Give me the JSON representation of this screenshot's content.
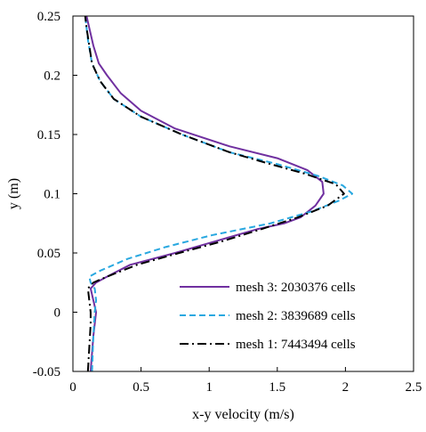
{
  "chart_data": {
    "type": "line",
    "title": "",
    "xlabel": "x-y velocity (m/s)",
    "ylabel": "y (m)",
    "xlim": [
      0,
      2.5
    ],
    "ylim": [
      -0.05,
      0.25
    ],
    "xticks": [
      0,
      0.5,
      1,
      1.5,
      2,
      2.5
    ],
    "xtick_labels": [
      "0",
      "0.5",
      "1",
      "1.5",
      "2",
      "2.5"
    ],
    "yticks": [
      -0.05,
      0,
      0.05,
      0.1,
      0.15,
      0.2,
      0.25
    ],
    "ytick_labels": [
      "-0.05",
      "0",
      "0.05",
      "0.1",
      "0.15",
      "0.2",
      "0.25"
    ],
    "grid": false,
    "legend_position": "bottom-right",
    "series": [
      {
        "name": "mesh 3: 2030376 cells",
        "color": "#7030A0",
        "dash": "solid",
        "points": [
          [
            0.13,
            -0.05
          ],
          [
            0.15,
            -0.02
          ],
          [
            0.17,
            0.0
          ],
          [
            0.14,
            0.015
          ],
          [
            0.13,
            0.02
          ],
          [
            0.17,
            0.025
          ],
          [
            0.25,
            0.03
          ],
          [
            0.42,
            0.04
          ],
          [
            0.75,
            0.05
          ],
          [
            1.05,
            0.06
          ],
          [
            1.35,
            0.07
          ],
          [
            1.55,
            0.075
          ],
          [
            1.67,
            0.08
          ],
          [
            1.78,
            0.09
          ],
          [
            1.84,
            0.1
          ],
          [
            1.83,
            0.11
          ],
          [
            1.72,
            0.12
          ],
          [
            1.5,
            0.13
          ],
          [
            1.15,
            0.14
          ],
          [
            0.75,
            0.155
          ],
          [
            0.5,
            0.17
          ],
          [
            0.35,
            0.185
          ],
          [
            0.25,
            0.2
          ],
          [
            0.19,
            0.21
          ],
          [
            0.15,
            0.225
          ],
          [
            0.12,
            0.24
          ],
          [
            0.1,
            0.25
          ]
        ]
      },
      {
        "name": "mesh 2: 3839689 cells",
        "color": "#29A8E0",
        "dash": "dashed",
        "points": [
          [
            0.14,
            -0.05
          ],
          [
            0.15,
            -0.02
          ],
          [
            0.16,
            0.0
          ],
          [
            0.17,
            0.01
          ],
          [
            0.16,
            0.02
          ],
          [
            0.13,
            0.025
          ],
          [
            0.12,
            0.03
          ],
          [
            0.2,
            0.035
          ],
          [
            0.4,
            0.045
          ],
          [
            0.68,
            0.055
          ],
          [
            1.02,
            0.065
          ],
          [
            1.45,
            0.075
          ],
          [
            1.75,
            0.085
          ],
          [
            1.95,
            0.094
          ],
          [
            2.05,
            0.1
          ],
          [
            1.98,
            0.107
          ],
          [
            1.8,
            0.115
          ],
          [
            1.5,
            0.125
          ],
          [
            1.15,
            0.135
          ],
          [
            0.8,
            0.15
          ],
          [
            0.5,
            0.165
          ],
          [
            0.3,
            0.18
          ],
          [
            0.2,
            0.195
          ],
          [
            0.14,
            0.21
          ],
          [
            0.11,
            0.23
          ],
          [
            0.09,
            0.25
          ]
        ]
      },
      {
        "name": "mesh 1: 7443494 cells",
        "color": "#000000",
        "dash": "dashdot",
        "points": [
          [
            0.11,
            -0.05
          ],
          [
            0.12,
            -0.03
          ],
          [
            0.13,
            -0.01
          ],
          [
            0.13,
            0.0
          ],
          [
            0.12,
            0.01
          ],
          [
            0.11,
            0.02
          ],
          [
            0.15,
            0.025
          ],
          [
            0.25,
            0.03
          ],
          [
            0.47,
            0.04
          ],
          [
            0.78,
            0.05
          ],
          [
            1.1,
            0.06
          ],
          [
            1.38,
            0.07
          ],
          [
            1.65,
            0.08
          ],
          [
            1.87,
            0.09
          ],
          [
            1.99,
            0.1
          ],
          [
            1.93,
            0.108
          ],
          [
            1.7,
            0.117
          ],
          [
            1.45,
            0.125
          ],
          [
            1.15,
            0.135
          ],
          [
            0.8,
            0.15
          ],
          [
            0.5,
            0.165
          ],
          [
            0.3,
            0.18
          ],
          [
            0.2,
            0.195
          ],
          [
            0.14,
            0.21
          ],
          [
            0.12,
            0.225
          ],
          [
            0.1,
            0.24
          ],
          [
            0.09,
            0.25
          ]
        ]
      }
    ]
  }
}
